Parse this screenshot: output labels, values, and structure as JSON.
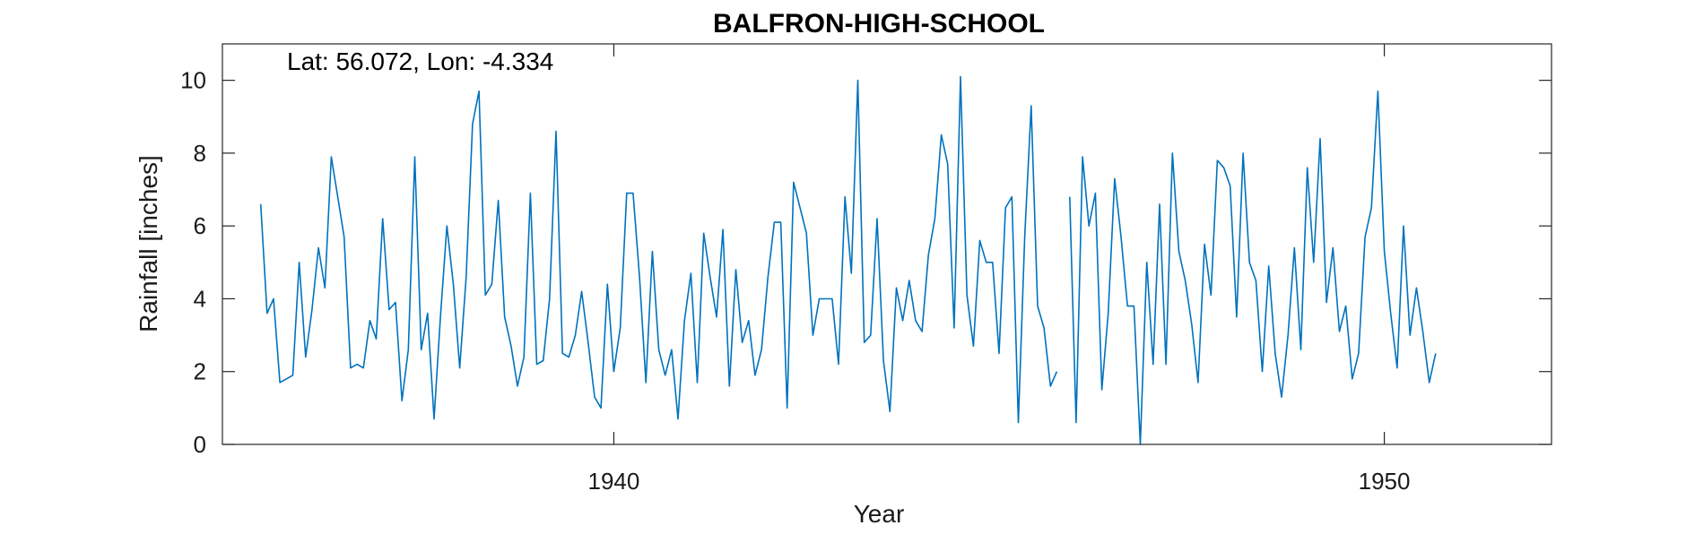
{
  "chart_data": {
    "type": "line",
    "title": "BALFRON-HIGH-SCHOOL",
    "annotation": "Lat: 56.072, Lon: -4.334",
    "xlabel": "Year",
    "ylabel": "Rainfall [inches]",
    "xlim": [
      1934.92,
      1952.17
    ],
    "ylim": [
      0,
      11
    ],
    "xticks": [
      1940,
      1950
    ],
    "xtick_labels": [
      "1940",
      "1950"
    ],
    "yticks": [
      0,
      2,
      4,
      6,
      8,
      10
    ],
    "ytick_labels": [
      "0",
      "2",
      "4",
      "6",
      "8",
      "10"
    ],
    "grid": false,
    "line_color": "#0072BD",
    "series": [
      {
        "start": "1935-06",
        "values": [
          6.6,
          3.6,
          4.0,
          1.7,
          1.8,
          1.9,
          5.0,
          2.4,
          3.7,
          5.4,
          4.3,
          7.9,
          6.8,
          5.7,
          2.1,
          2.2,
          2.1,
          3.4,
          2.9,
          6.2,
          3.7,
          3.9,
          1.2,
          2.6,
          7.9,
          2.6,
          3.6,
          0.7,
          3.5,
          6.0,
          4.4,
          2.1,
          4.6,
          8.8,
          9.7,
          4.1,
          4.4,
          6.7,
          3.5,
          2.7,
          1.6,
          2.4,
          6.9,
          2.2,
          2.3,
          4.0,
          8.6,
          2.5,
          2.4,
          3.0,
          4.2,
          2.8,
          1.3,
          1.0,
          4.4,
          2.0,
          3.2,
          6.9,
          6.9,
          4.6,
          1.7,
          5.3,
          2.6,
          1.9,
          2.6,
          0.7,
          3.4,
          4.7,
          1.7,
          5.8,
          4.6,
          3.5,
          5.9,
          1.6,
          4.8,
          2.8,
          3.4,
          1.9,
          2.6,
          4.6,
          6.1,
          6.1,
          1.0,
          7.2,
          6.5,
          5.8,
          3.0,
          4.0,
          4.0,
          4.0,
          2.2,
          6.8,
          4.7,
          10.0,
          2.8,
          3.0,
          6.2,
          2.3,
          0.9,
          4.3,
          3.4,
          4.5,
          3.4,
          3.1,
          5.2,
          6.2,
          8.5,
          7.7,
          3.2,
          10.1,
          4.1,
          2.7,
          5.6,
          5.0,
          5.0,
          2.5,
          6.5,
          6.8,
          0.6,
          5.7,
          9.3,
          3.8,
          3.2,
          1.6,
          2.0,
          null,
          6.8,
          0.6,
          7.9,
          6.0,
          6.9,
          1.5,
          3.6,
          7.3,
          5.7,
          3.8,
          3.8,
          0.0,
          5.0,
          2.2,
          6.6,
          2.2,
          8.0,
          5.3,
          4.5,
          3.3,
          1.7,
          5.5,
          4.1,
          7.8,
          7.6,
          7.1,
          3.5,
          8.0,
          5.0,
          4.5,
          2.0,
          4.9,
          2.5,
          1.3,
          3.0,
          5.4,
          2.6,
          7.6,
          5.0,
          8.4,
          3.9,
          5.4,
          3.1,
          3.8,
          1.8,
          2.5,
          5.7,
          6.5,
          9.7,
          5.3,
          3.6,
          2.1,
          6.0,
          3.0,
          4.3,
          3.1,
          1.7,
          2.5
        ]
      }
    ]
  }
}
